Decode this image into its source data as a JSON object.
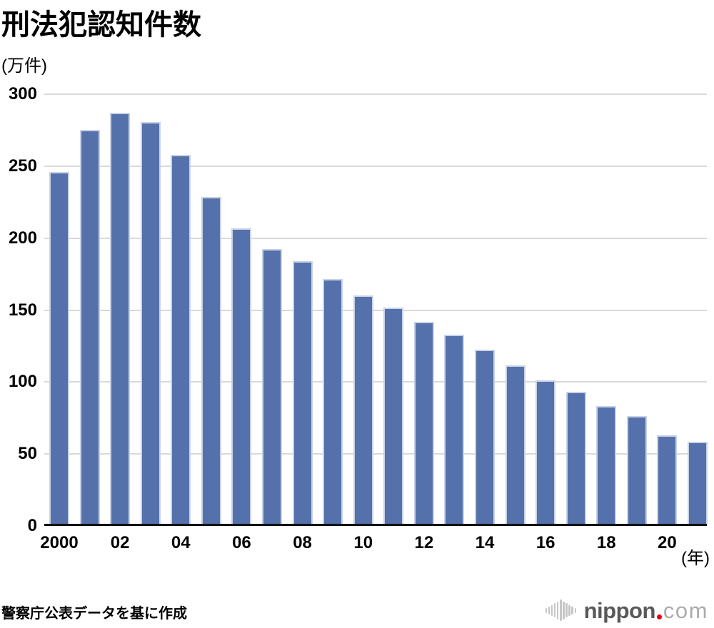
{
  "header": {
    "title": "刑法犯認知件数"
  },
  "footer": {
    "source": "警察庁公表データを基に作成",
    "logo": {
      "mark": "soundwave-bars-icon",
      "text_bold": "nippon",
      "dot_color": "#e60012",
      "text_light": "com"
    }
  },
  "chart_data": {
    "type": "bar",
    "title": "刑法犯認知件数",
    "y_unit_label": "(万件)",
    "x_unit_label": "(年)",
    "ylim": [
      0,
      300
    ],
    "ytick_interval": 50,
    "ytick_labels": [
      "300",
      "250",
      "200",
      "150",
      "100",
      "50",
      "0"
    ],
    "grid": true,
    "bar_color": "#5571ab",
    "categories": [
      "2000",
      "2001",
      "2002",
      "2003",
      "2004",
      "2005",
      "2006",
      "2007",
      "2008",
      "2009",
      "2010",
      "2011",
      "2012",
      "2013",
      "2014",
      "2015",
      "2016",
      "2017",
      "2018",
      "2019",
      "2020",
      "2021"
    ],
    "values": [
      244.3,
      273.5,
      285.4,
      279.0,
      256.3,
      226.9,
      205.1,
      190.9,
      182.6,
      170.3,
      158.6,
      150.3,
      140.3,
      131.4,
      121.2,
      109.9,
      99.6,
      91.5,
      81.7,
      74.9,
      61.4,
      56.8
    ],
    "xtick_labels": [
      "2000",
      "02",
      "04",
      "06",
      "08",
      "10",
      "12",
      "14",
      "16",
      "18",
      "20"
    ],
    "legend": null
  }
}
